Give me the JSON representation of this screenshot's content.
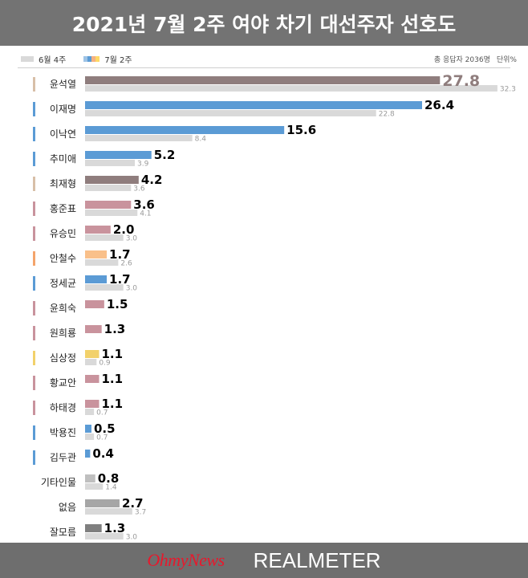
{
  "header": {
    "title": "2021년 7월 2주 여야 차기 대선주자 선호도"
  },
  "legend": {
    "prev_label": "6월 4주",
    "cur_label": "7월 2주",
    "cur_swatch_colors": [
      "#9dc3e6",
      "#5b9bd5",
      "#f4b183",
      "#ffd966"
    ]
  },
  "meta": {
    "respondents": "총 응답자 2036명",
    "unit": "단위%"
  },
  "footer": {
    "logo_left": "OhmyNews",
    "logo_right": "REALMETER"
  },
  "chart_data": {
    "type": "bar",
    "orientation": "horizontal",
    "categories": [
      "윤석열",
      "이재명",
      "이낙연",
      "추미애",
      "최재형",
      "홍준표",
      "유승민",
      "안철수",
      "정세균",
      "윤희숙",
      "원희룡",
      "심상정",
      "황교안",
      "하태경",
      "박용진",
      "김두관",
      "기타인물",
      "없음",
      "잘모름"
    ],
    "series": [
      {
        "name": "7월 2주",
        "values": [
          27.8,
          26.4,
          15.6,
          5.2,
          4.2,
          3.6,
          2.0,
          1.7,
          1.7,
          1.5,
          1.3,
          1.1,
          1.1,
          1.1,
          0.5,
          0.4,
          0.8,
          2.7,
          1.3
        ],
        "labels": [
          "27.8",
          "26.4",
          "15.6",
          "5.2",
          "4.2",
          "3.6",
          "2.0",
          "1.7",
          "1.7",
          "1.5",
          "1.3",
          "1.1",
          "1.1",
          "1.1",
          "0.5",
          "0.4",
          "0.8",
          "2.7",
          "1.3"
        ]
      },
      {
        "name": "6월 4주",
        "values": [
          32.3,
          22.8,
          8.4,
          3.9,
          3.6,
          4.1,
          3.0,
          2.6,
          3.0,
          null,
          null,
          0.9,
          null,
          0.7,
          0.7,
          null,
          1.4,
          3.7,
          3.0
        ],
        "labels": [
          "32.3",
          "22.8",
          "8.4",
          "3.9",
          "3.6",
          "4.1",
          "3.0",
          "2.6",
          "3.0",
          "",
          "",
          "0.9",
          "",
          "0.7",
          "0.7",
          "",
          "1.4",
          "3.7",
          "3.0"
        ]
      }
    ],
    "bar_colors": [
      "#8f7d7d",
      "#5b9bd5",
      "#5b9bd5",
      "#5b9bd5",
      "#8f7d7d",
      "#c9939d",
      "#c9939d",
      "#f9c08a",
      "#5b9bd5",
      "#c9939d",
      "#c9939d",
      "#f2d16b",
      "#c9939d",
      "#c9939d",
      "#5b9bd5",
      "#5b9bd5",
      "#bfbfbf",
      "#a6a6a6",
      "#7f7f7f"
    ],
    "marker_colors": [
      "#d8bfa8",
      "#5b9bd5",
      "#5b9bd5",
      "#5b9bd5",
      "#d8bfa8",
      "#c9939d",
      "#c9939d",
      "#f4a46b",
      "#5b9bd5",
      "#c9939d",
      "#c9939d",
      "#f2d16b",
      "#c9939d",
      "#c9939d",
      "#5b9bd5",
      "#5b9bd5",
      null,
      null,
      null
    ],
    "label_colors": [
      "#8f7d7d",
      "#000000",
      "#000000",
      "#000000",
      "#000000",
      "#000000",
      "#000000",
      "#000000",
      "#000000",
      "#000000",
      "#000000",
      "#000000",
      "#000000",
      "#000000",
      "#000000",
      "#000000",
      "#000000",
      "#000000",
      "#000000"
    ],
    "previous_color": "#d9d9d9",
    "xlim": [
      0,
      33
    ]
  }
}
